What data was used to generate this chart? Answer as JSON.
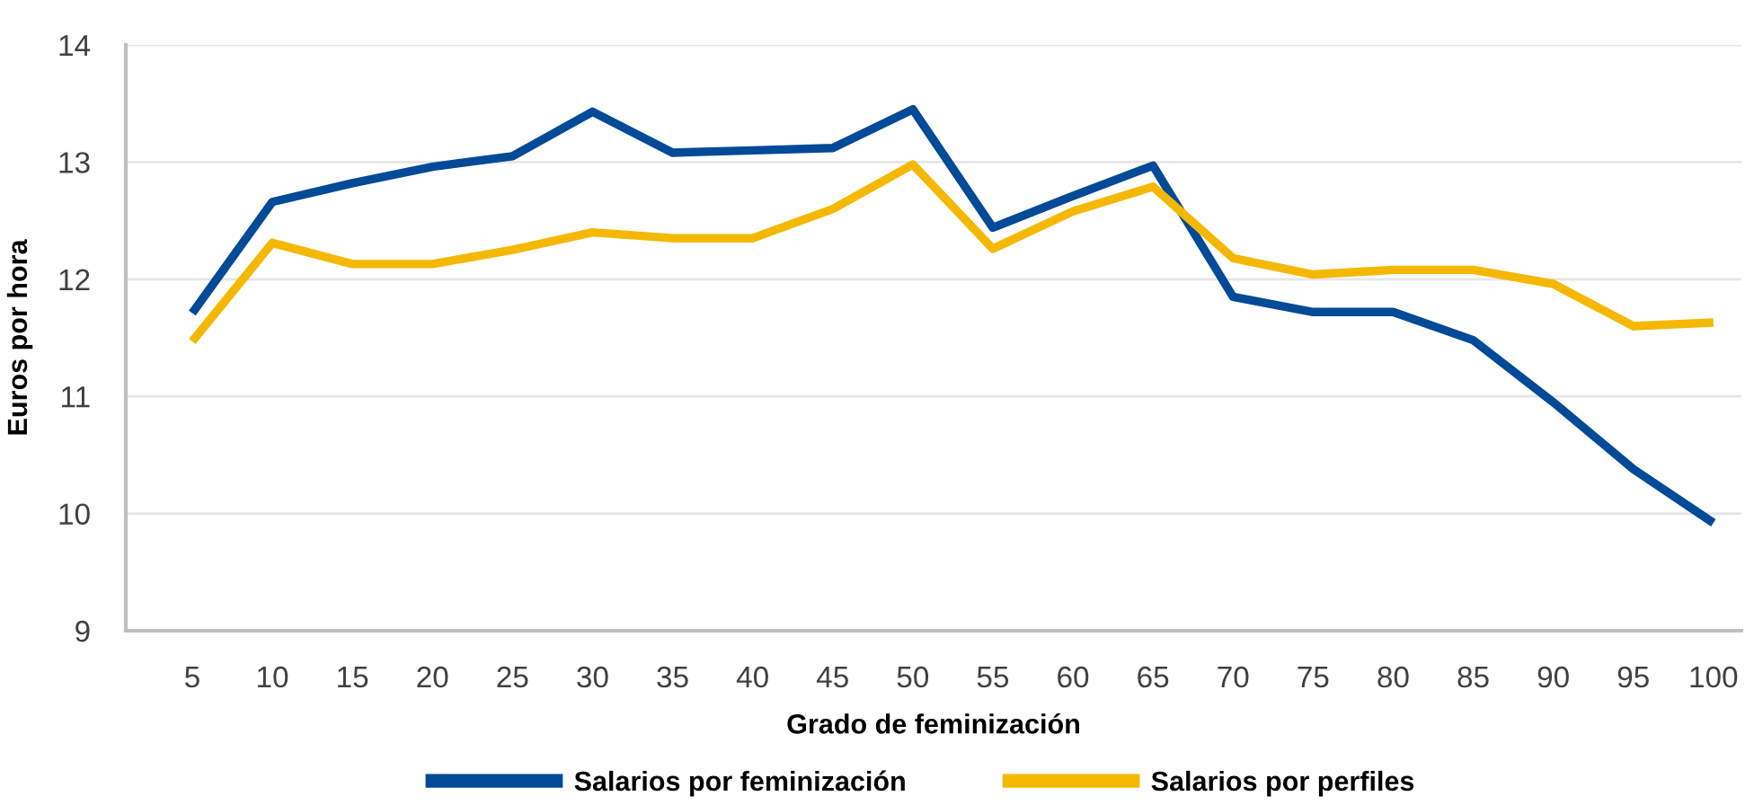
{
  "chart_data": {
    "type": "line",
    "xlabel": "Grado de feminización",
    "ylabel": "Euros por hora",
    "categories": [
      "5",
      "10",
      "15",
      "20",
      "25",
      "30",
      "35",
      "40",
      "45",
      "50",
      "55",
      "60",
      "65",
      "70",
      "75",
      "80",
      "85",
      "90",
      "95",
      "100"
    ],
    "series": [
      {
        "name": "Salarios por feminización",
        "color": "#004a98",
        "values": [
          11.71,
          12.66,
          12.82,
          12.96,
          13.05,
          13.43,
          13.08,
          13.1,
          13.12,
          13.45,
          12.44,
          12.71,
          12.97,
          11.85,
          11.72,
          11.72,
          11.48,
          10.95,
          10.38,
          9.92
        ]
      },
      {
        "name": "Salarios por perfiles",
        "color": "#f5b800",
        "values": [
          11.47,
          12.31,
          12.13,
          12.13,
          12.25,
          12.4,
          12.35,
          12.35,
          12.6,
          12.98,
          12.26,
          12.58,
          12.79,
          12.18,
          12.04,
          12.08,
          12.08,
          11.96,
          11.6,
          11.63
        ]
      }
    ],
    "ylim": [
      9,
      14
    ],
    "yticks": [
      9,
      10,
      11,
      12,
      13,
      14
    ],
    "grid": "y",
    "legend": "bottom",
    "marker": "none",
    "line_style": "solid"
  }
}
